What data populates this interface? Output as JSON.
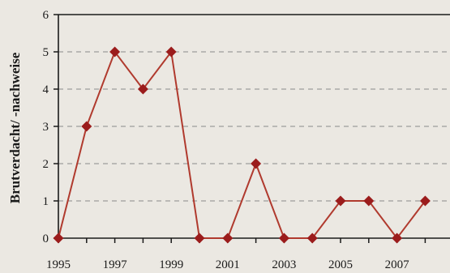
{
  "chart_data": {
    "type": "line",
    "title": "",
    "xlabel": "",
    "ylabel": "Brutverdacht/ -nachweise",
    "x": [
      1995,
      1996,
      1997,
      1998,
      1999,
      2000,
      2001,
      2002,
      2003,
      2004,
      2005,
      2006,
      2007,
      2008
    ],
    "series": [
      {
        "values": [
          0,
          3,
          5,
          4,
          5,
          0,
          0,
          2,
          0,
          0,
          1,
          1,
          0,
          1
        ]
      }
    ],
    "x_ticks": [
      "1995",
      "1997",
      "1999",
      "2001",
      "2003",
      "2005",
      "2007"
    ],
    "y_ticks": [
      "0",
      "1",
      "2",
      "3",
      "4",
      "5",
      "6"
    ],
    "xlim": [
      1995,
      2008
    ],
    "ylim": [
      0,
      6
    ],
    "grid": "horizontal dashed",
    "colors": {
      "line": "#b03a2e",
      "marker": "#9b1c1c",
      "grid": "#8a8a8a",
      "axis": "#1a1a1a"
    }
  }
}
